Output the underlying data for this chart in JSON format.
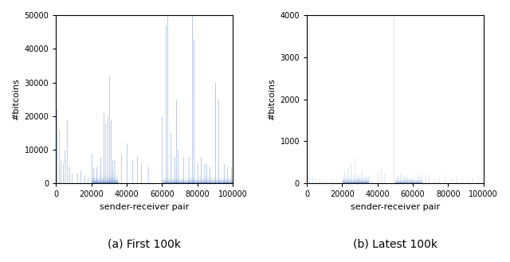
{
  "title_left": "(a) First 100k",
  "title_right": "(b) Latest 100k",
  "xlabel": "sender-receiver pair",
  "ylabel": "#bitcoins",
  "xlim": [
    0,
    100000
  ],
  "ylim_left": [
    0,
    50000
  ],
  "ylim_right": [
    0,
    4000
  ],
  "yticks_left": [
    0,
    10000,
    20000,
    30000,
    40000,
    50000
  ],
  "yticks_right": [
    0,
    1000,
    2000,
    3000,
    4000
  ],
  "xticks": [
    0,
    20000,
    40000,
    60000,
    80000,
    100000
  ],
  "xtick_labels": [
    "0",
    "20000",
    "40000",
    "60000",
    "80000",
    "100000"
  ],
  "bar_color": "#4472C4",
  "figsize": [
    6.4,
    3.29
  ],
  "dpi": 100,
  "left_spikes": [
    [
      500,
      22000
    ],
    [
      1500,
      16000
    ],
    [
      2500,
      7000
    ],
    [
      4000,
      6000
    ],
    [
      5000,
      10000
    ],
    [
      6000,
      19000
    ],
    [
      7500,
      5000
    ],
    [
      9000,
      3000
    ],
    [
      12000,
      3000
    ],
    [
      14000,
      4000
    ],
    [
      16000,
      2500
    ],
    [
      18000,
      2000
    ],
    [
      20000,
      9000
    ],
    [
      21000,
      5000
    ],
    [
      23000,
      5000
    ],
    [
      25000,
      8000
    ],
    [
      27000,
      21000
    ],
    [
      28000,
      18000
    ],
    [
      29000,
      20000
    ],
    [
      30000,
      32000
    ],
    [
      31000,
      19000
    ],
    [
      32000,
      7000
    ],
    [
      33000,
      7000
    ],
    [
      37000,
      9000
    ],
    [
      40000,
      12000
    ],
    [
      43000,
      7000
    ],
    [
      46000,
      8000
    ],
    [
      48000,
      6000
    ],
    [
      52000,
      5000
    ],
    [
      60000,
      20000
    ],
    [
      62000,
      47000
    ],
    [
      63000,
      50000
    ],
    [
      65000,
      15000
    ],
    [
      67000,
      8000
    ],
    [
      68000,
      25000
    ],
    [
      69000,
      10000
    ],
    [
      72000,
      8000
    ],
    [
      75000,
      8000
    ],
    [
      77000,
      50000
    ],
    [
      78000,
      43000
    ],
    [
      80000,
      6000
    ],
    [
      82000,
      8000
    ],
    [
      84000,
      6000
    ],
    [
      85000,
      6000
    ],
    [
      87000,
      5000
    ],
    [
      90000,
      30000
    ],
    [
      92000,
      25000
    ],
    [
      95000,
      6000
    ],
    [
      97000,
      5000
    ],
    [
      99000,
      5000
    ]
  ],
  "right_spikes": [
    [
      500,
      200
    ],
    [
      1500,
      150
    ],
    [
      3000,
      180
    ],
    [
      5000,
      120
    ],
    [
      7000,
      100
    ],
    [
      9000,
      80
    ],
    [
      11000,
      60
    ],
    [
      13000,
      80
    ],
    [
      15000,
      70
    ],
    [
      17000,
      60
    ],
    [
      19000,
      50
    ],
    [
      21000,
      300
    ],
    [
      23000,
      400
    ],
    [
      25000,
      500
    ],
    [
      27000,
      600
    ],
    [
      29000,
      200
    ],
    [
      31000,
      300
    ],
    [
      33000,
      150
    ],
    [
      35000,
      200
    ],
    [
      37000,
      100
    ],
    [
      40000,
      300
    ],
    [
      42000,
      350
    ],
    [
      44000,
      250
    ],
    [
      49000,
      4000
    ],
    [
      51000,
      200
    ],
    [
      53000,
      250
    ],
    [
      55000,
      180
    ],
    [
      57000,
      150
    ],
    [
      59000,
      120
    ],
    [
      63000,
      200
    ],
    [
      65000,
      250
    ],
    [
      67000,
      180
    ],
    [
      69000,
      220
    ],
    [
      72000,
      100
    ],
    [
      75000,
      150
    ],
    [
      78000,
      200
    ],
    [
      82000,
      120
    ],
    [
      85000,
      180
    ],
    [
      88000,
      150
    ],
    [
      91000,
      100
    ],
    [
      94000,
      130
    ],
    [
      97000,
      110
    ]
  ]
}
